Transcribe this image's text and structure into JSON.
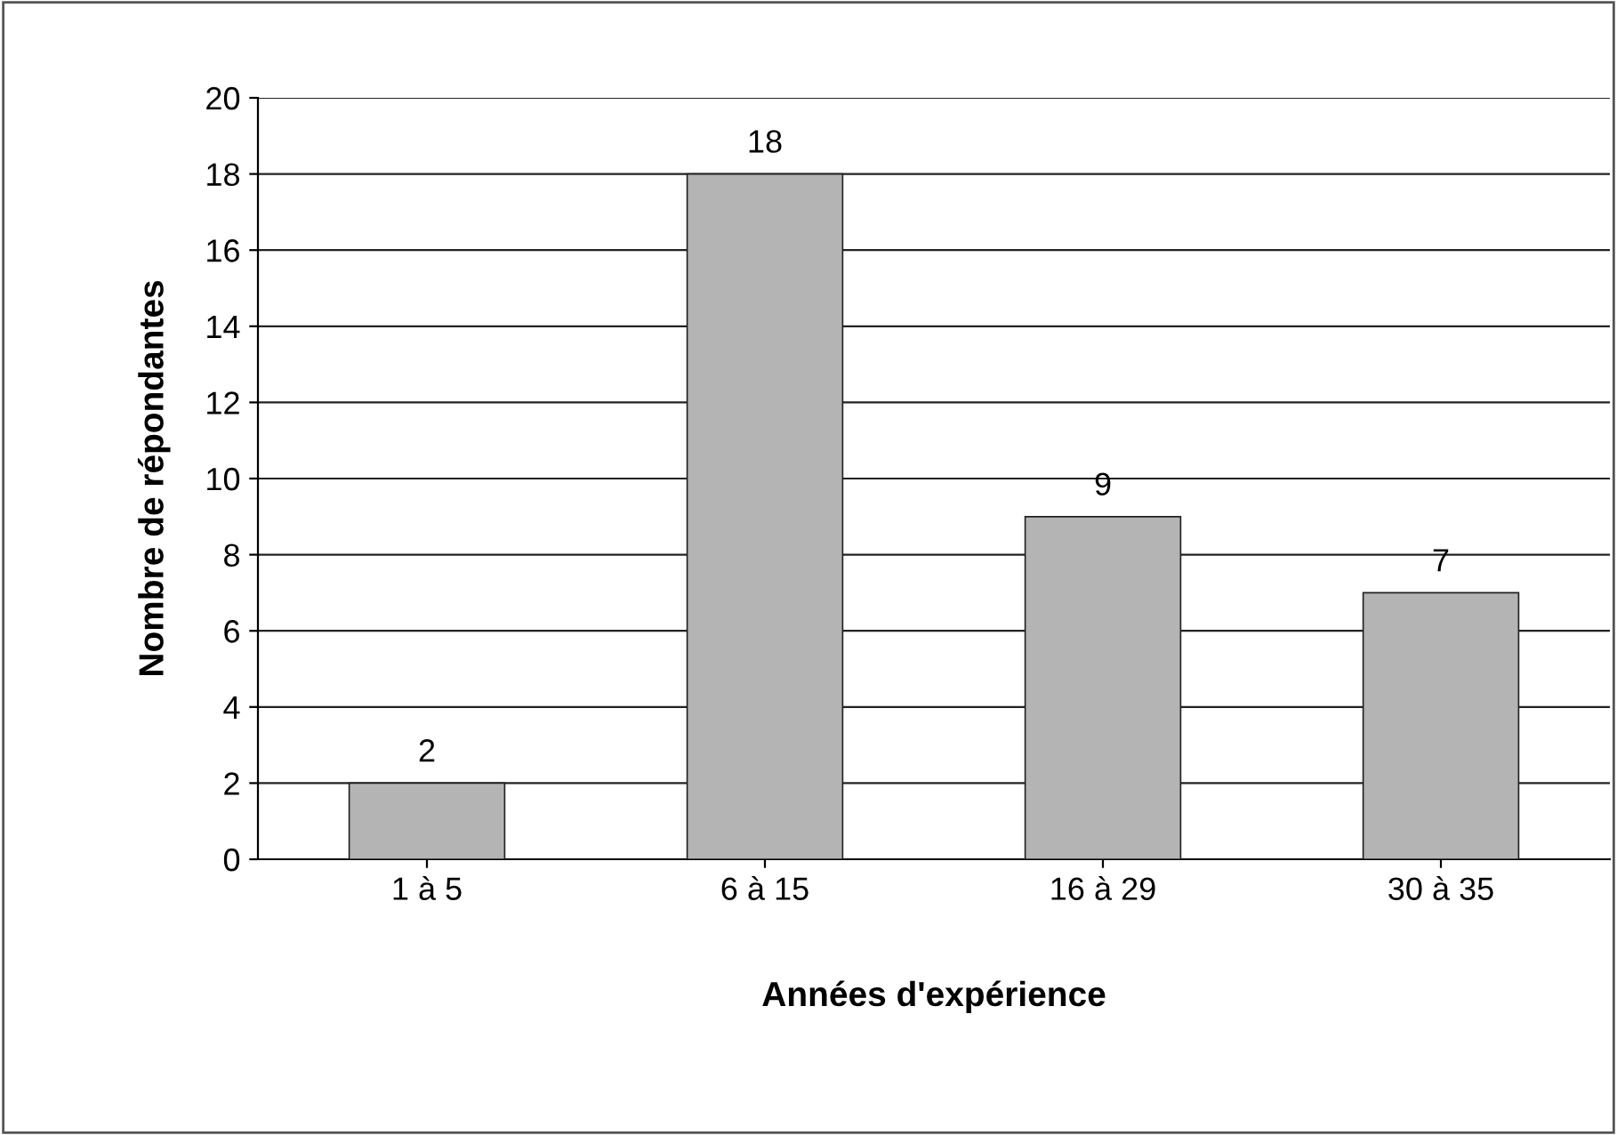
{
  "chart_data": {
    "type": "bar",
    "xlabel": "Années d'expérience",
    "ylabel": "Nombre de répondantes",
    "categories": [
      "1 à 5",
      "6 à 15",
      "16 à 29",
      "30 à 35"
    ],
    "values": [
      2,
      18,
      9,
      7
    ],
    "color": "#b4b4b4",
    "ylim": [
      0,
      20
    ],
    "yticks": [
      0,
      2,
      4,
      6,
      8,
      10,
      12,
      14,
      16,
      18,
      20
    ],
    "grid": "y",
    "data_labels": true
  }
}
